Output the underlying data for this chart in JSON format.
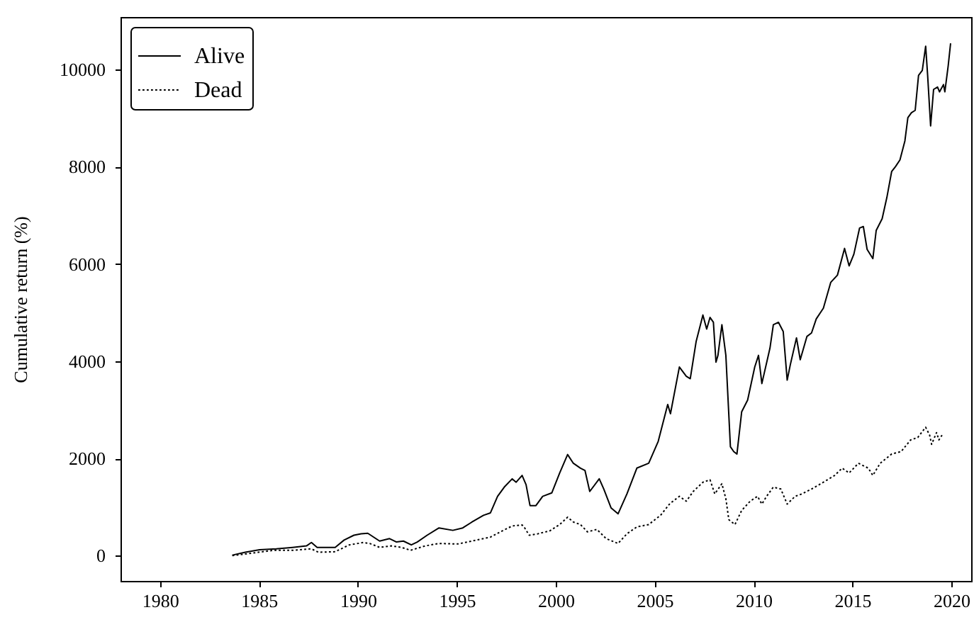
{
  "chart_data": {
    "type": "line",
    "ylabel": "Cumulative return (%)",
    "xlim": [
      1978,
      2021
    ],
    "xticks": [
      1980,
      1985,
      1990,
      1995,
      2000,
      2005,
      2010,
      2015,
      2020
    ],
    "ylim": [
      -520,
      11080
    ],
    "yticks": [
      0,
      2000,
      4000,
      6000,
      8000,
      10000
    ],
    "legend": "top left",
    "series": [
      {
        "name": "Alive",
        "color": "#000000",
        "line_style": "solid",
        "x": [
          1983.65,
          1984.31,
          1985.03,
          1985.87,
          1986.7,
          1987.4,
          1987.65,
          1987.94,
          1988.85,
          1989.3,
          1989.8,
          1990.16,
          1990.5,
          1991.1,
          1991.6,
          1991.95,
          1992.3,
          1992.7,
          1993.0,
          1993.5,
          1994.1,
          1994.8,
          1995.3,
          1995.76,
          1996.35,
          1996.7,
          1997.06,
          1997.4,
          1997.8,
          1998.0,
          1998.3,
          1998.5,
          1998.7,
          1999.0,
          1999.34,
          1999.8,
          2000.2,
          2000.6,
          2000.89,
          2001.25,
          2001.48,
          2001.72,
          2002.2,
          2002.43,
          2002.8,
          2003.15,
          2003.6,
          2004.1,
          2004.7,
          2005.18,
          2005.66,
          2005.8,
          2006.25,
          2006.6,
          2006.8,
          2007.1,
          2007.44,
          2007.63,
          2007.8,
          2007.97,
          2008.1,
          2008.2,
          2008.4,
          2008.6,
          2008.83,
          2009.0,
          2009.16,
          2009.4,
          2009.7,
          2010.06,
          2010.25,
          2010.42,
          2010.83,
          2011.0,
          2011.26,
          2011.5,
          2011.7,
          2011.86,
          2012.17,
          2012.36,
          2012.7,
          2012.93,
          2013.17,
          2013.53,
          2013.9,
          2014.24,
          2014.6,
          2014.83,
          2015.07,
          2015.36,
          2015.55,
          2015.74,
          2016.03,
          2016.2,
          2016.5,
          2016.74,
          2016.98,
          2017.17,
          2017.4,
          2017.65,
          2017.8,
          2017.98,
          2018.17,
          2018.34,
          2018.53,
          2018.7,
          2018.8,
          2018.95,
          2019.1,
          2019.3,
          2019.4,
          2019.6,
          2019.67,
          2019.84,
          2019.96
        ],
        "values": [
          10,
          70,
          120,
          140,
          170,
          200,
          270,
          170,
          170,
          320,
          420,
          450,
          460,
          300,
          350,
          280,
          300,
          220,
          280,
          420,
          570,
          520,
          570,
          690,
          830,
          880,
          1220,
          1410,
          1580,
          1510,
          1650,
          1460,
          1030,
          1030,
          1220,
          1290,
          1700,
          2080,
          1900,
          1800,
          1750,
          1320,
          1580,
          1370,
          980,
          860,
          1270,
          1800,
          1900,
          2350,
          3110,
          2920,
          3880,
          3690,
          3640,
          4410,
          4950,
          4660,
          4900,
          4800,
          3980,
          4120,
          4750,
          4120,
          2240,
          2140,
          2090,
          2960,
          3200,
          3880,
          4120,
          3540,
          4270,
          4750,
          4800,
          4610,
          3610,
          3930,
          4480,
          4030,
          4510,
          4580,
          4870,
          5090,
          5620,
          5770,
          6320,
          5960,
          6200,
          6740,
          6770,
          6300,
          6110,
          6690,
          6930,
          7370,
          7900,
          8000,
          8140,
          8530,
          9010,
          9110,
          9160,
          9880,
          9980,
          10480,
          9880,
          8840,
          9590,
          9640,
          9540,
          9690,
          9540,
          10080,
          10540
        ]
      },
      {
        "name": "Dead",
        "color": "#000000",
        "line_style": "dotted",
        "x": [
          1983.65,
          1984.8,
          1985.74,
          1986.7,
          1987.65,
          1988.0,
          1988.85,
          1989.56,
          1990.28,
          1990.6,
          1991.1,
          1991.7,
          1992.2,
          1992.66,
          1993.4,
          1994.1,
          1995.05,
          1995.76,
          1996.7,
          1997.2,
          1997.8,
          1998.3,
          1998.4,
          1998.66,
          1999.1,
          1999.7,
          2000.2,
          2000.6,
          2000.9,
          2001.25,
          2001.6,
          2002.08,
          2002.55,
          2003.15,
          2003.6,
          2004.1,
          2004.7,
          2005.3,
          2005.77,
          2006.25,
          2006.6,
          2006.95,
          2007.44,
          2007.8,
          2008.04,
          2008.4,
          2008.6,
          2008.75,
          2009.06,
          2009.4,
          2009.83,
          2010.2,
          2010.42,
          2010.66,
          2011.0,
          2011.38,
          2011.7,
          2012.1,
          2012.45,
          2012.93,
          2013.53,
          2014.1,
          2014.48,
          2014.83,
          2015.3,
          2015.8,
          2016.03,
          2016.4,
          2016.98,
          2017.46,
          2017.94,
          2018.3,
          2018.7,
          2018.9,
          2019.0,
          2019.25,
          2019.37,
          2019.53
        ],
        "values": [
          0,
          60,
          110,
          110,
          140,
          70,
          80,
          220,
          270,
          250,
          170,
          200,
          170,
          110,
          200,
          250,
          240,
          300,
          380,
          490,
          610,
          630,
          590,
          420,
          450,
          510,
          640,
          790,
          690,
          640,
          490,
          540,
          350,
          250,
          450,
          590,
          640,
          830,
          1070,
          1220,
          1120,
          1320,
          1510,
          1560,
          1270,
          1480,
          1170,
          740,
          640,
          930,
          1120,
          1220,
          1060,
          1220,
          1410,
          1370,
          1060,
          1220,
          1270,
          1370,
          1510,
          1650,
          1800,
          1700,
          1900,
          1800,
          1650,
          1900,
          2090,
          2140,
          2380,
          2430,
          2640,
          2480,
          2290,
          2530,
          2380,
          2480
        ]
      }
    ]
  }
}
